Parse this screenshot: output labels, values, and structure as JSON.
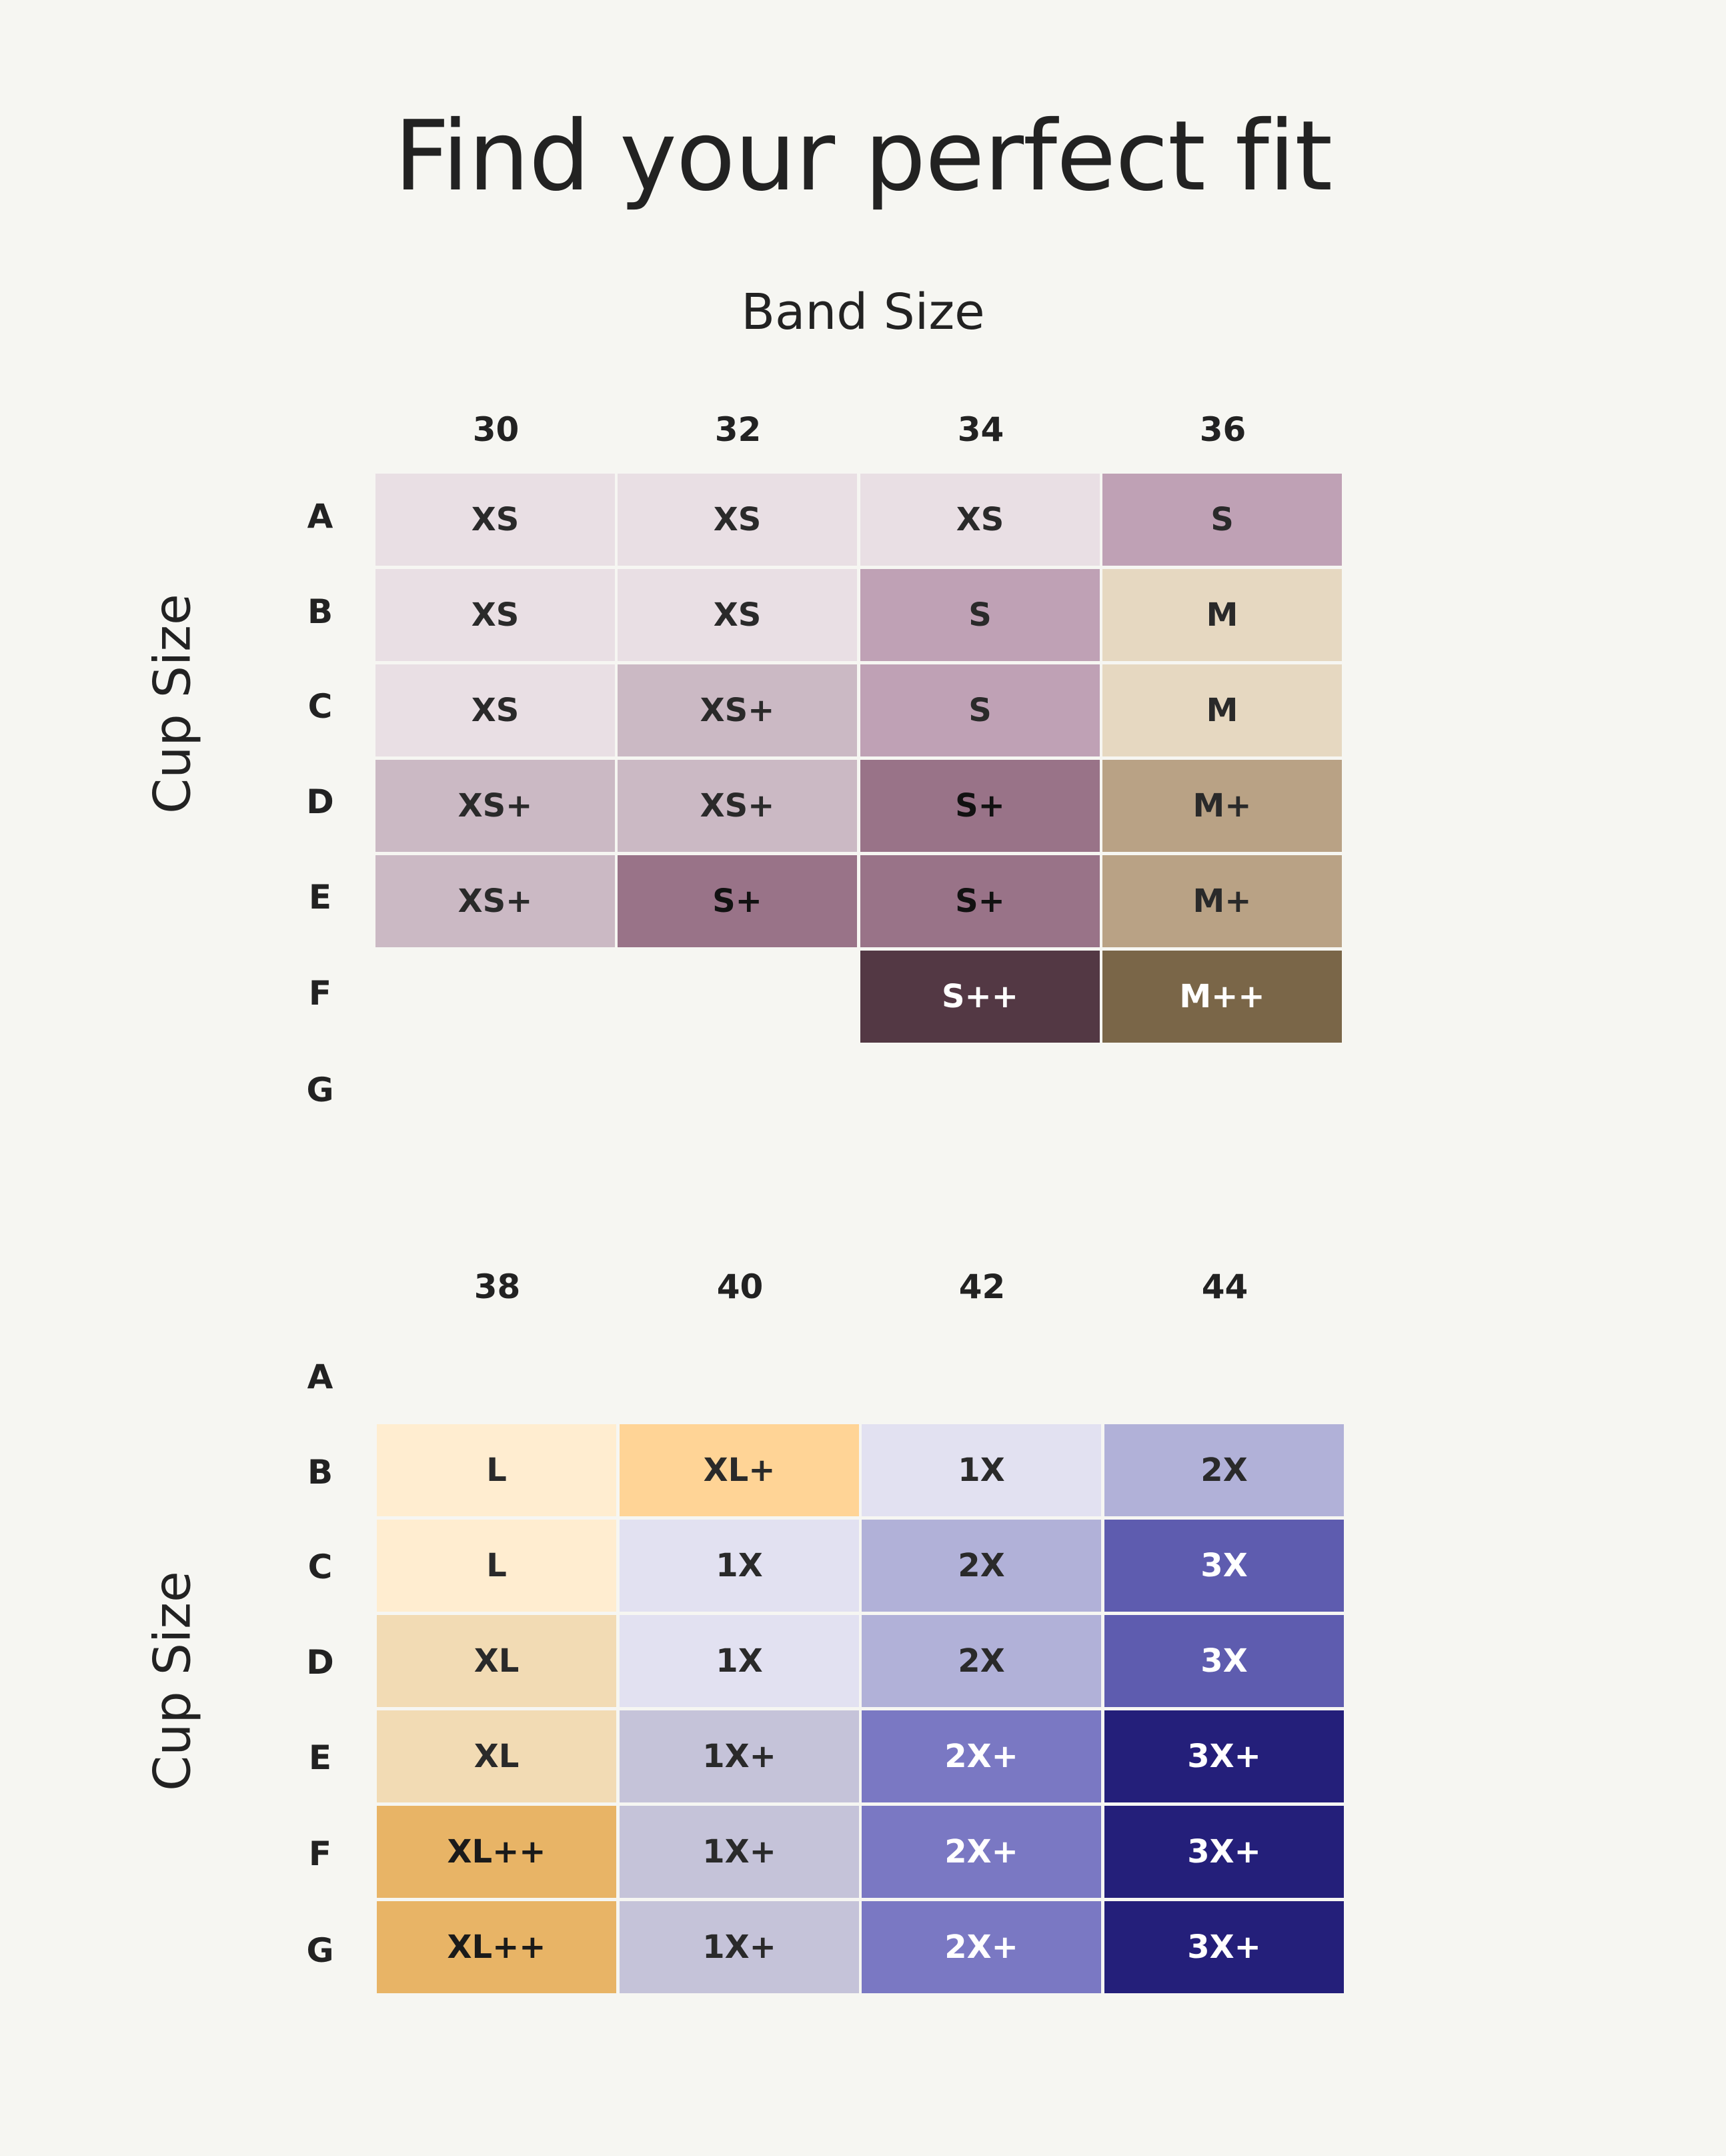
{
  "title": "Find your perfect fit",
  "band_label": "Band Size",
  "cup_label": "Cup Size",
  "cup_rows": [
    "A",
    "B",
    "C",
    "D",
    "E",
    "F",
    "G"
  ],
  "palette": {
    "XS": {
      "bg": "#e9dfe4",
      "fg": "#2a2a2a"
    },
    "XS+": {
      "bg": "#cbb9c4",
      "fg": "#2a2a2a"
    },
    "S": {
      "bg": "#bfa1b5",
      "fg": "#2a2a2a"
    },
    "S+": {
      "bg": "#997388",
      "fg": "#111111"
    },
    "S++": {
      "bg": "#533844",
      "fg": "#ffffff"
    },
    "M": {
      "bg": "#e6d8c1",
      "fg": "#2a2a2a"
    },
    "M+": {
      "bg": "#b9a285",
      "fg": "#2a2a2a"
    },
    "M++": {
      "bg": "#7a6648",
      "fg": "#ffffff"
    },
    "L": {
      "bg": "#ffedd0",
      "fg": "#2a2a2a"
    },
    "XL": {
      "bg": "#f2dbb4",
      "fg": "#2a2a2a"
    },
    "XL+": {
      "bg": "#ffd496",
      "fg": "#2a2a2a"
    },
    "XL++": {
      "bg": "#e8b466",
      "fg": "#1a1a1a"
    },
    "1X": {
      "bg": "#e2e1f1",
      "fg": "#2a2a2a"
    },
    "1X+": {
      "bg": "#c5c3d9",
      "fg": "#2a2a2a"
    },
    "2X": {
      "bg": "#b1b1d8",
      "fg": "#2a2a2a"
    },
    "2X+": {
      "bg": "#7a78c3",
      "fg": "#ffffff"
    },
    "3X": {
      "bg": "#5e5caf",
      "fg": "#ffffff"
    },
    "3X+": {
      "bg": "#241f7a",
      "fg": "#ffffff"
    }
  },
  "charts": [
    {
      "bands": [
        "30",
        "32",
        "34",
        "36"
      ],
      "grid": [
        [
          "XS",
          "XS",
          "XS",
          "S"
        ],
        [
          "XS",
          "XS",
          "S",
          "M"
        ],
        [
          "XS",
          "XS+",
          "S",
          "M"
        ],
        [
          "XS+",
          "XS+",
          "S+",
          "M+"
        ],
        [
          "XS+",
          "S+",
          "S+",
          "M+"
        ],
        [
          null,
          null,
          "S++",
          "M++"
        ],
        [
          null,
          null,
          null,
          null
        ]
      ]
    },
    {
      "bands": [
        "38",
        "40",
        "42",
        "44"
      ],
      "grid": [
        [
          null,
          null,
          null,
          null
        ],
        [
          "L",
          "XL+",
          "1X",
          "2X"
        ],
        [
          "L",
          "1X",
          "2X",
          "3X"
        ],
        [
          "XL",
          "1X",
          "2X",
          "3X"
        ],
        [
          "XL",
          "1X+",
          "2X+",
          "3X+"
        ],
        [
          "XL++",
          "1X+",
          "2X+",
          "3X+"
        ],
        [
          "XL++",
          "1X+",
          "2X+",
          "3X+"
        ]
      ]
    }
  ]
}
